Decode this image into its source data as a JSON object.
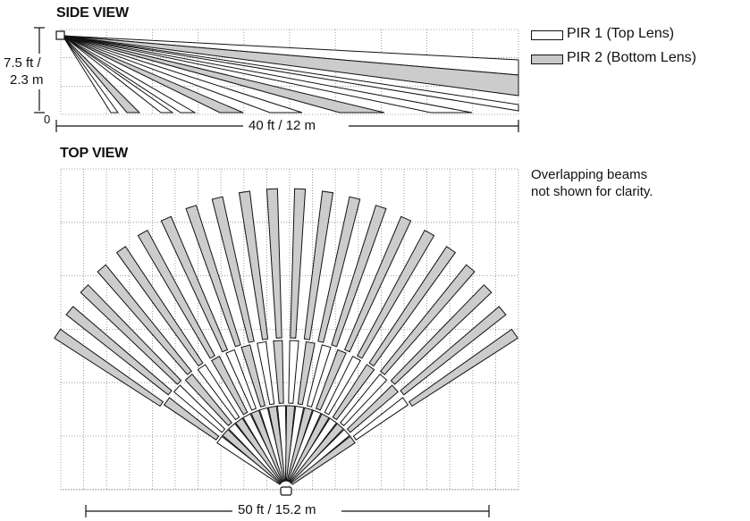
{
  "side_view": {
    "title": "SIDE VIEW",
    "height_label_ft": "7.5 ft /",
    "height_label_m": "2.3 m",
    "zero_label": "0",
    "distance_label": "40 ft / 12 m"
  },
  "top_view": {
    "title": "TOP VIEW",
    "width_label": "50 ft / 15.2 m"
  },
  "legend": {
    "pir1": {
      "label": "PIR 1 (Top Lens)",
      "color": "#ffffff"
    },
    "pir2": {
      "label": "PIR 2 (Bottom Lens)",
      "color": "#cccccc"
    }
  },
  "note": {
    "line1": "Overlapping beams",
    "line2": "not shown for clarity."
  }
}
